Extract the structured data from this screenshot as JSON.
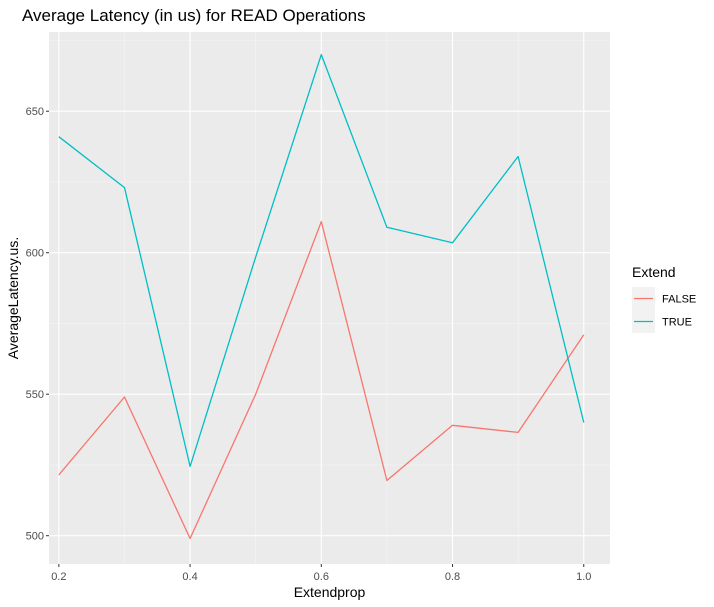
{
  "chart_data": {
    "type": "line",
    "title": "Average Latency (in us) for READ Operations",
    "xlabel": "Extendprop",
    "ylabel": "AverageLatency.us.",
    "x": [
      0.2,
      0.3,
      0.4,
      0.5,
      0.6,
      0.7,
      0.8,
      0.9,
      1.0
    ],
    "xlim": [
      0.185,
      1.04
    ],
    "ylim": [
      490,
      678
    ],
    "xticks": [
      0.2,
      0.4,
      0.6,
      0.8,
      1.0
    ],
    "xtick_labels": [
      "0.2",
      "0.4",
      "0.6",
      "0.8",
      "1.0"
    ],
    "yticks": [
      500,
      550,
      600,
      650
    ],
    "ytick_labels": [
      "500",
      "550",
      "600",
      "650"
    ],
    "grid": true,
    "legend_title": "Extend",
    "legend_position": "right",
    "series": [
      {
        "name": "FALSE",
        "color": "#F8766D",
        "values": [
          521.5,
          549,
          499,
          550,
          611,
          519.5,
          539,
          536.5,
          571
        ]
      },
      {
        "name": "TRUE",
        "color": "#00BFC4",
        "values": [
          641,
          623,
          524.5,
          598.5,
          670,
          609,
          603.5,
          634,
          540
        ]
      }
    ]
  }
}
